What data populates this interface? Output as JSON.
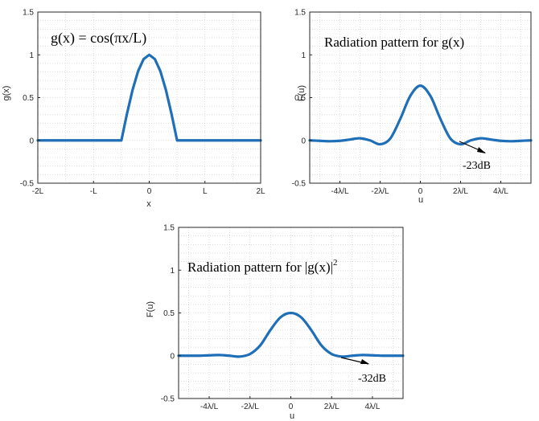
{
  "theme": {
    "line_color": "#1f6fb8",
    "axis_color": "#262626",
    "grid_color": "#c8c8c8"
  },
  "chart_data": [
    {
      "type": "line",
      "annotation": "g(x) = cos(πx/L)",
      "xlabel": "x",
      "ylabel": "g(x)",
      "xlim": [
        -2,
        2
      ],
      "ylim": [
        -0.5,
        1.5
      ],
      "grid": "on",
      "xticks": [
        -2,
        -1,
        0,
        1,
        2
      ],
      "xtick_labels": [
        "-2L",
        "-L",
        "0",
        "L",
        "2L"
      ],
      "yticks": [
        -0.5,
        0,
        0.5,
        1,
        1.5
      ],
      "ytick_labels": [
        "-0.5",
        "0",
        "0.5",
        "1",
        "1.5"
      ],
      "series": [
        {
          "x": [
            -2,
            -0.5,
            -0.4,
            -0.3,
            -0.2,
            -0.1,
            0,
            0.1,
            0.2,
            0.3,
            0.4,
            0.5,
            2
          ],
          "y": [
            0,
            0,
            0.309,
            0.588,
            0.809,
            0.951,
            1,
            0.951,
            0.809,
            0.588,
            0.309,
            0,
            0
          ]
        }
      ]
    },
    {
      "type": "line",
      "annotation": "Radiation pattern for g(x)",
      "xlabel": "u",
      "ylabel": "F(u)",
      "xlim": [
        -5.5,
        5.5
      ],
      "ylim": [
        -0.5,
        1.5
      ],
      "grid": "on",
      "xticks": [
        -4,
        -2,
        0,
        2,
        4
      ],
      "xtick_labels": [
        "-4λ/L",
        "-2λ/L",
        "0",
        "2λ/L",
        "4λ/L"
      ],
      "yticks": [
        -0.5,
        0,
        0.5,
        1,
        1.5
      ],
      "ytick_labels": [
        "-0.5",
        "0",
        "0.5",
        "1",
        "1.5"
      ],
      "arrow_label": "-23dB",
      "series": [
        {
          "x": [
            -5.5,
            -5,
            -4.5,
            -4,
            -3.5,
            -3,
            -2.5,
            -2,
            -1.5,
            -1,
            -0.5,
            0,
            0.5,
            1,
            1.5,
            2,
            2.5,
            3,
            3.5,
            4,
            4.5,
            5,
            5.5
          ],
          "y": [
            0.0,
            -0.005,
            -0.01,
            -0.005,
            0.01,
            0.025,
            0.0,
            -0.045,
            0.02,
            0.25,
            0.52,
            0.64,
            0.52,
            0.25,
            0.02,
            -0.045,
            0.0,
            0.025,
            0.01,
            -0.005,
            -0.01,
            -0.005,
            0.0
          ]
        }
      ]
    },
    {
      "type": "line",
      "annotation_prefix": "Radiation pattern for ",
      "annotation_main": "|g(x)|",
      "annotation_sup": "2",
      "xlabel": "u",
      "ylabel": "F(u)",
      "xlim": [
        -5.5,
        5.5
      ],
      "ylim": [
        -0.5,
        1.5
      ],
      "grid": "on",
      "xticks": [
        -4,
        -2,
        0,
        2,
        4
      ],
      "xtick_labels": [
        "-4λ/L",
        "-2λ/L",
        "0",
        "2λ/L",
        "4λ/L"
      ],
      "yticks": [
        -0.5,
        0,
        0.5,
        1,
        1.5
      ],
      "ytick_labels": [
        "-0.5",
        "0",
        "0.5",
        "1",
        "1.5"
      ],
      "arrow_label": "-32dB",
      "series": [
        {
          "x": [
            -5.5,
            -5,
            -4.5,
            -4,
            -3.5,
            -3,
            -2.5,
            -2,
            -1.5,
            -1,
            -0.5,
            0,
            0.5,
            1,
            1.5,
            2,
            2.5,
            3,
            3.5,
            4,
            4.5,
            5,
            5.5
          ],
          "y": [
            0.0,
            0.0,
            0.0,
            0.005,
            0.008,
            0.0,
            -0.01,
            0.02,
            0.12,
            0.3,
            0.45,
            0.5,
            0.45,
            0.3,
            0.12,
            0.02,
            -0.01,
            0.0,
            0.008,
            0.005,
            0.0,
            0.0,
            0.0
          ]
        }
      ]
    }
  ]
}
